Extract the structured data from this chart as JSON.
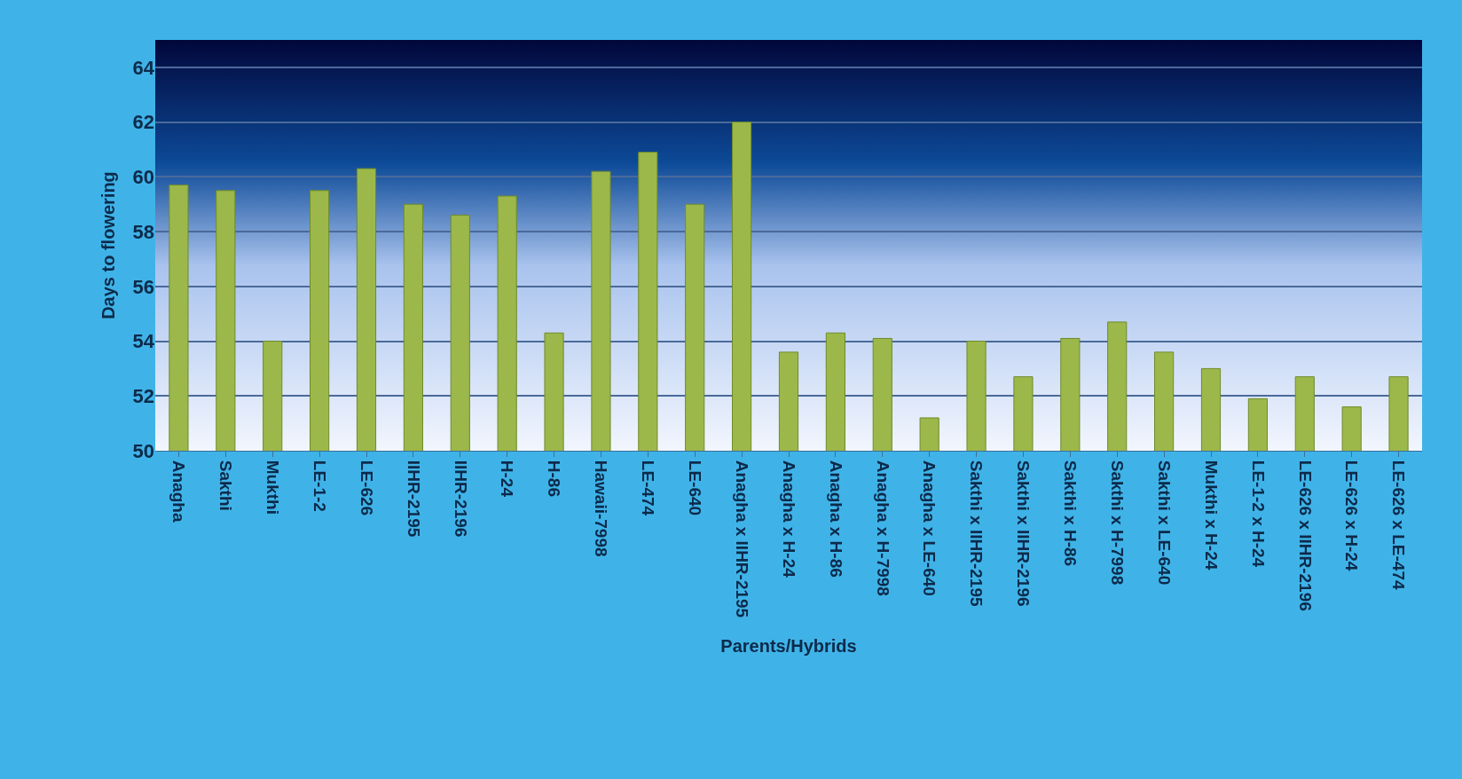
{
  "chart_data": {
    "type": "bar",
    "xlabel": "Parents/Hybrids",
    "ylabel": "Days to flowering",
    "categories": [
      "Anagha",
      "Sakthi",
      "Mukthi",
      "LE-1-2",
      "LE-626",
      "IIHR-2195",
      "IIHR-2196",
      "H-24",
      "H-86",
      "Hawaii-7998",
      "LE-474",
      "LE-640",
      "Anagha x IIHR-2195",
      "Anagha x H-24",
      "Anagha x H-86",
      "Anagha x H-7998",
      "Anagha x LE-640",
      "Sakthi x IIHR-2195",
      "Sakthi x IIHR-2196",
      "Sakthi x H-86",
      "Sakthi x H-7998",
      "Sakthi x LE-640",
      "Mukthi x H-24",
      "LE-1-2 x H-24",
      "LE-626 x IIHR-2196",
      "LE-626 x H-24",
      "LE-626 x LE-474"
    ],
    "values": [
      59.7,
      59.5,
      54.0,
      59.5,
      60.3,
      59.0,
      58.6,
      59.3,
      54.3,
      60.2,
      60.9,
      59.0,
      62.0,
      53.6,
      54.3,
      54.1,
      51.2,
      54.0,
      52.7,
      54.1,
      54.7,
      53.6,
      53.0,
      51.9,
      52.7,
      51.6,
      52.7
    ],
    "color": "#9cb84a",
    "ylim": [
      50,
      65
    ],
    "yticks": [
      50,
      52,
      54,
      56,
      58,
      60,
      62,
      64
    ],
    "grid": "y"
  }
}
